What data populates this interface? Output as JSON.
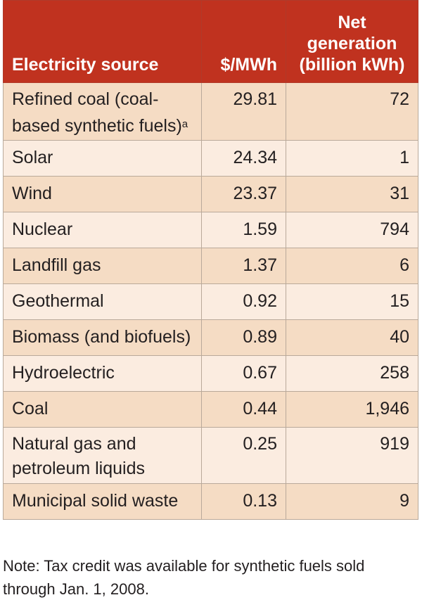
{
  "table": {
    "headers": {
      "source": "Electricity source",
      "cost": "$/MWh",
      "generation_line1": "Net",
      "generation_line2": "generation",
      "generation_line3": "(billion kWh)"
    },
    "rows": [
      {
        "source_line1": "Refined coal (coal-",
        "source_line2": "based synthetic fuels)",
        "footnote": "a",
        "cost": "29.81",
        "generation": "72"
      },
      {
        "source": "Solar",
        "cost": "24.34",
        "generation": "1"
      },
      {
        "source": "Wind",
        "cost": "23.37",
        "generation": "31"
      },
      {
        "source": "Nuclear",
        "cost": "1.59",
        "generation": "794"
      },
      {
        "source": "Landfill gas",
        "cost": "1.37",
        "generation": "6"
      },
      {
        "source": "Geothermal",
        "cost": "0.92",
        "generation": "15"
      },
      {
        "source": "Biomass (and biofuels)",
        "cost": "0.89",
        "generation": "40"
      },
      {
        "source": "Hydroelectric",
        "cost": "0.67",
        "generation": "258"
      },
      {
        "source": "Coal",
        "cost": "0.44",
        "generation": "1,946"
      },
      {
        "source_line1": "Natural gas and",
        "source_line2": "petroleum liquids",
        "cost": "0.25",
        "generation": "919"
      },
      {
        "source": "Municipal solid waste",
        "cost": "0.13",
        "generation": "9"
      }
    ]
  },
  "note": {
    "line1": "Note: Tax credit was available for synthetic fuels sold",
    "line2": "through Jan. 1, 2008."
  },
  "colors": {
    "header_bg": "#c0321f",
    "row_dark": "#f5dcc4",
    "row_light": "#fbece0",
    "text": "#231f20"
  }
}
